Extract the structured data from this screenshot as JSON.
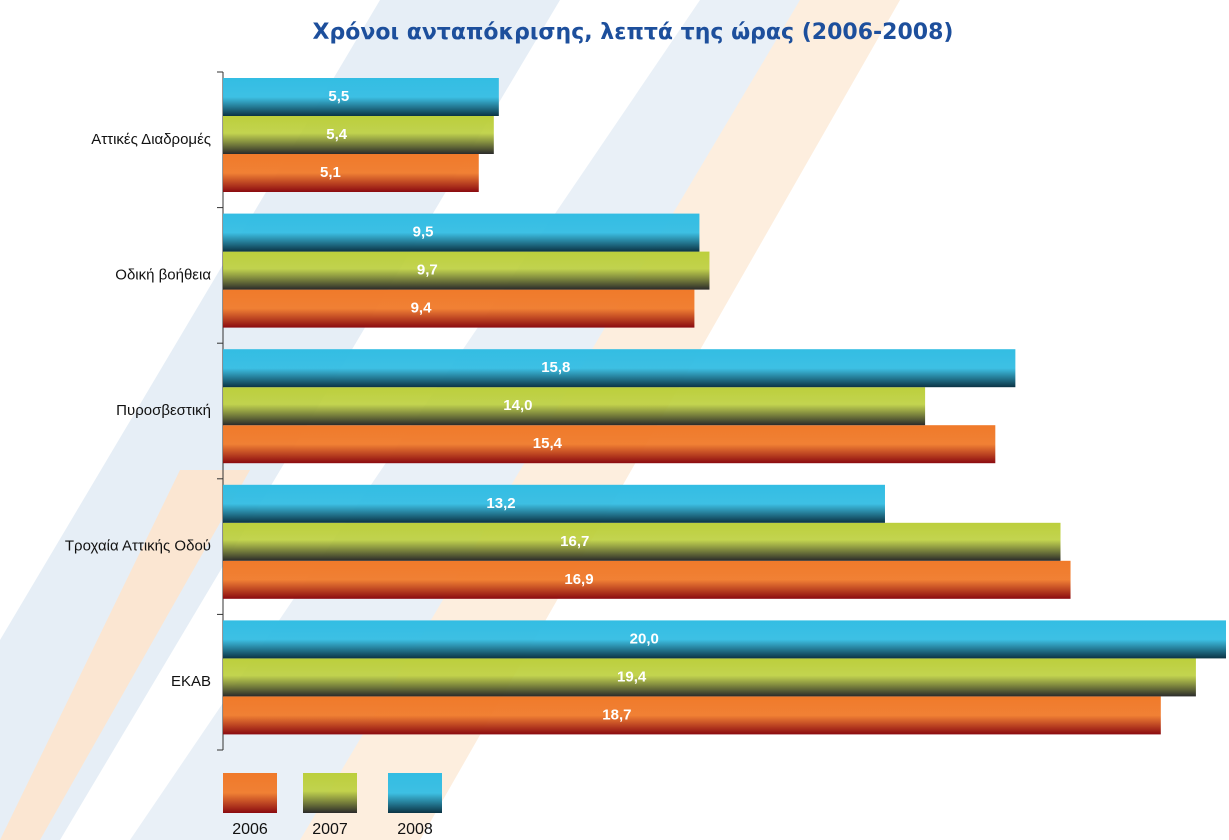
{
  "chart_data": {
    "type": "bar",
    "orientation": "horizontal",
    "title": "Χρόνοι ανταπόκρισης, λεπτά της ώρας (2006-2008)",
    "categories": [
      "Αττικές Διαδρομές",
      "Οδική βοήθεια",
      "Πυροσβεστική",
      "Τροχαία Αττικής Οδού",
      "ΕΚΑΒ"
    ],
    "series": [
      {
        "name": "2006",
        "color": "#f07a2a",
        "values": [
          5.1,
          9.4,
          15.4,
          16.9,
          18.7
        ],
        "value_labels": [
          "5,1",
          "9,4",
          "15,4",
          "16,9",
          "18,7"
        ]
      },
      {
        "name": "2007",
        "color": "#bccf3c",
        "values": [
          5.4,
          9.7,
          14.0,
          16.7,
          19.4
        ],
        "value_labels": [
          "5,4",
          "9,7",
          "14,0",
          "16,7",
          "19,4"
        ]
      },
      {
        "name": "2008",
        "color": "#33bde3",
        "values": [
          5.5,
          9.5,
          15.8,
          13.2,
          20.0
        ],
        "value_labels": [
          "5,5",
          "9,5",
          "15,8",
          "13,2",
          "20,0"
        ]
      }
    ],
    "xlim": [
      0,
      20
    ]
  }
}
